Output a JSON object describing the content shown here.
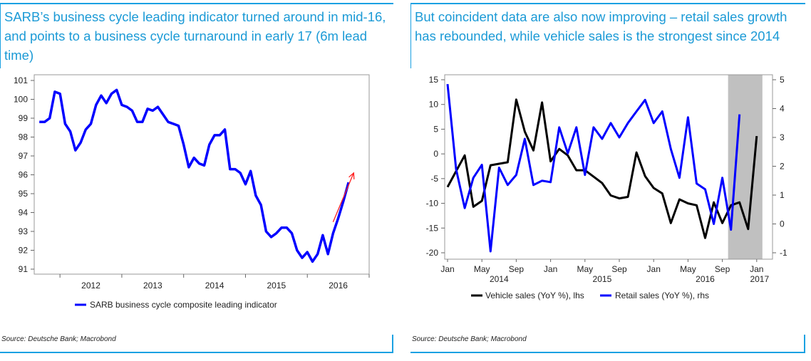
{
  "theme": {
    "accent": "#1ba1e2",
    "title_color": "#1b9ad6",
    "series_blue": "#0000ff",
    "series_black": "#000000",
    "arrow_red": "#ff2020",
    "shade": "#c0c0c0"
  },
  "charts": [
    {
      "title": "SARB’s business cycle leading indicator turned around in mid-16, and points to a business cycle turnaround in early 17 (6m lead time)",
      "source": "Source: Deutsche Bank; Macrobond"
    },
    {
      "title": "But coincident data are also now improving – retail sales growth has rebounded, while vehicle sales is the strongest since 2014",
      "source": "Source: Deutsche Bank; Macrobond"
    }
  ],
  "chart_data": [
    {
      "type": "line",
      "title": "SARB’s business cycle leading indicator turned around in mid-16, and points to a business cycle turnaround in early 17 (6m lead time)",
      "xlabel": "",
      "ylabel": "",
      "ylim": [
        91,
        101
      ],
      "yticks": [
        91,
        92,
        93,
        94,
        95,
        96,
        97,
        98,
        99,
        100,
        101
      ],
      "xticks": [
        "2012",
        "2013",
        "2014",
        "2015",
        "2016"
      ],
      "x_start": "2011-09",
      "x_range": [
        "2011-08",
        "2017-01"
      ],
      "grid": false,
      "legend": {
        "position": "bottom",
        "entries": [
          "SARB business cycle composite leading indicator"
        ]
      },
      "annotation": {
        "type": "arrow",
        "color": "red",
        "text": "",
        "from": [
          "2016-06",
          93.5
        ],
        "to": [
          "2016-10",
          96.1
        ]
      },
      "series": [
        {
          "name": "SARB business cycle composite leading indicator",
          "values": [
            98.8,
            98.8,
            99.0,
            100.4,
            100.3,
            98.7,
            98.3,
            97.3,
            97.7,
            98.4,
            98.7,
            99.7,
            100.2,
            99.8,
            100.3,
            100.5,
            99.7,
            99.6,
            99.4,
            98.8,
            98.8,
            99.5,
            99.4,
            99.6,
            99.2,
            98.8,
            98.7,
            98.6,
            97.6,
            96.4,
            96.9,
            96.6,
            96.5,
            97.6,
            98.1,
            98.1,
            98.4,
            96.3,
            96.3,
            96.1,
            95.5,
            96.2,
            94.9,
            94.4,
            93.0,
            92.7,
            92.9,
            93.2,
            93.2,
            92.9,
            92.0,
            91.6,
            91.9,
            91.4,
            91.8,
            92.8,
            91.8,
            92.9,
            93.7,
            94.6,
            95.6
          ]
        }
      ]
    },
    {
      "type": "line",
      "title": "But coincident data are also now improving – retail sales growth has rebounded, while vehicle sales is the strongest since 2014",
      "xlabel": "",
      "ylabel": "",
      "ylim_left": [
        -20,
        15
      ],
      "yticks_left": [
        -20,
        -15,
        -10,
        -5,
        0,
        5,
        10,
        15
      ],
      "ylim_right": [
        -1,
        5
      ],
      "yticks_right": [
        -1,
        0,
        1,
        2,
        3,
        4,
        5
      ],
      "xticks": [
        "Jan",
        "May",
        "Sep",
        "Jan",
        "May",
        "Sep",
        "Jan",
        "May",
        "Sep",
        "Jan"
      ],
      "xtick_years": [
        "2014",
        "2015",
        "2016",
        "2017"
      ],
      "x_start": "2014-01",
      "grid": false,
      "shaded_region": [
        "2016-10",
        "2017-01"
      ],
      "legend": {
        "position": "bottom",
        "entries": [
          "Vehicle sales (YoY %), lhs",
          "Retail sales (YoY %), rhs"
        ]
      },
      "series": [
        {
          "name": "Vehicle sales (YoY %), lhs",
          "axis": "left",
          "color": "black",
          "values": [
            -6.7,
            -3.5,
            -0.3,
            -10.7,
            -9.5,
            -2.3,
            -2.0,
            -1.7,
            11.0,
            4.5,
            0.7,
            10.4,
            -1.5,
            1.0,
            -0.3,
            -3.3,
            -3.3,
            -4.6,
            -5.9,
            -8.4,
            -9.0,
            -8.7,
            0.3,
            -4.5,
            -6.9,
            -8.0,
            -14.0,
            -9.2,
            -10.0,
            -10.4,
            -17.0,
            -9.8,
            -14.0,
            -10.4,
            -9.8,
            -15.2,
            3.6
          ]
        },
        {
          "name": "Retail sales (YoY %), rhs",
          "axis": "right",
          "color": "blue",
          "values": [
            4.85,
            1.9,
            0.55,
            1.6,
            2.05,
            -0.95,
            1.95,
            1.35,
            1.7,
            2.95,
            1.35,
            1.5,
            1.45,
            3.35,
            2.45,
            3.35,
            1.7,
            3.35,
            2.95,
            3.5,
            3.0,
            3.5,
            3.9,
            4.3,
            3.5,
            3.9,
            2.6,
            1.6,
            3.7,
            1.4,
            1.2,
            0.0,
            1.6,
            -0.2,
            3.8
          ]
        }
      ]
    }
  ]
}
